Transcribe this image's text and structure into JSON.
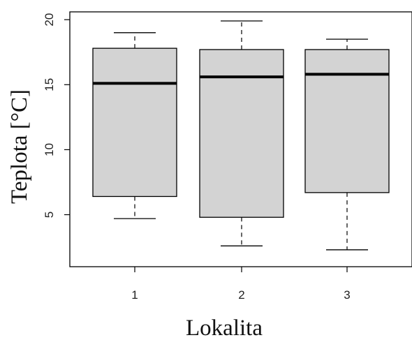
{
  "chart_data": {
    "type": "box",
    "xlabel": "Lokalita",
    "ylabel": "Teplota [°C]",
    "categories": [
      "1",
      "2",
      "3"
    ],
    "y_ticks": [
      "5",
      "10",
      "15",
      "20"
    ],
    "ylim": [
      1.0,
      20.6
    ],
    "boxes": [
      {
        "category": "1",
        "min": 4.7,
        "q1": 6.4,
        "median": 15.1,
        "q3": 17.8,
        "max": 19.0
      },
      {
        "category": "2",
        "min": 2.6,
        "q1": 4.8,
        "median": 15.6,
        "q3": 17.7,
        "max": 19.9
      },
      {
        "category": "3",
        "min": 2.3,
        "q1": 6.7,
        "median": 15.8,
        "q3": 17.7,
        "max": 18.5
      }
    ],
    "box_fill": "#d3d3d3",
    "line_color": "#000000"
  }
}
